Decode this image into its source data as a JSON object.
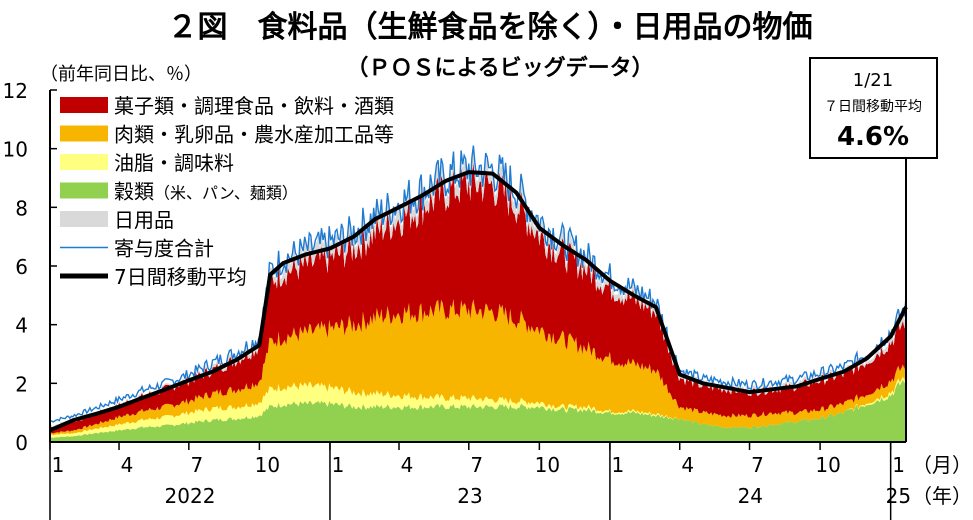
{
  "title": "２図　食料品（生鮮食品を除く）・日用品の物価",
  "subtitle": "（ＰＯＳによるビッグデータ）",
  "colors": {
    "confectionery": "#c00000",
    "meat": "#f8b500",
    "oils": "#ffff80",
    "grains": "#92d050",
    "daily": "#d9d9d9",
    "contribution_line": "#1f7ad1",
    "ma_line": "#000000"
  },
  "chart_data": {
    "type": "area",
    "ylabel": "（前年同日比、％）",
    "ylim": [
      0,
      12
    ],
    "yticks": [
      0,
      2,
      4,
      6,
      8,
      10,
      12
    ],
    "x_range": [
      "2022-01-01",
      "2025-01-21"
    ],
    "month_labels": [
      {
        "date": "2022-01",
        "label": "1"
      },
      {
        "date": "2022-04",
        "label": "4"
      },
      {
        "date": "2022-07",
        "label": "7"
      },
      {
        "date": "2022-10",
        "label": "10"
      },
      {
        "date": "2023-01",
        "label": "1"
      },
      {
        "date": "2023-04",
        "label": "4"
      },
      {
        "date": "2023-07",
        "label": "7"
      },
      {
        "date": "2023-10",
        "label": "10"
      },
      {
        "date": "2024-01",
        "label": "1"
      },
      {
        "date": "2024-04",
        "label": "4"
      },
      {
        "date": "2024-07",
        "label": "7"
      },
      {
        "date": "2024-10",
        "label": "10"
      },
      {
        "date": "2025-01",
        "label": "1"
      }
    ],
    "year_labels": [
      {
        "start": "2022-01",
        "end": "2023-01",
        "label": "2022"
      },
      {
        "start": "2023-01",
        "end": "2024-01",
        "label": "23"
      },
      {
        "start": "2024-01",
        "end": "2025-01",
        "label": "24"
      },
      {
        "start": "2025-01",
        "end": "2025-01-21",
        "label": "25"
      }
    ],
    "x_unit_month": "（月）",
    "x_unit_year": "（年）",
    "legend": [
      {
        "key": "confectionery",
        "label": "菓子類・調理食品・飲料・酒類",
        "kind": "area"
      },
      {
        "key": "meat",
        "label": "肉類・乳卵品・農水産加工品等",
        "kind": "area"
      },
      {
        "key": "oils",
        "label": "油脂・調味料",
        "kind": "area"
      },
      {
        "key": "grains",
        "label": "穀類",
        "sublabel": "（米、パン、麺類）",
        "kind": "area"
      },
      {
        "key": "daily",
        "label": "日用品",
        "kind": "area"
      },
      {
        "key": "contribution",
        "label": "寄与度合計",
        "kind": "thin-line"
      },
      {
        "key": "ma7",
        "label": "7日間移動平均",
        "kind": "thick-line"
      }
    ],
    "series_note": "monthly approximate values read from chart (percent, y/y)",
    "dates": [
      "2022-01-01",
      "2022-02-01",
      "2022-03-01",
      "2022-04-01",
      "2022-05-01",
      "2022-06-01",
      "2022-07-01",
      "2022-08-01",
      "2022-09-01",
      "2022-10-01",
      "2022-10-15",
      "2022-11-01",
      "2022-12-01",
      "2023-01-01",
      "2023-02-01",
      "2023-03-01",
      "2023-04-01",
      "2023-05-01",
      "2023-06-01",
      "2023-07-01",
      "2023-08-01",
      "2023-09-01",
      "2023-10-01",
      "2023-11-01",
      "2023-12-01",
      "2024-01-01",
      "2024-02-01",
      "2024-03-01",
      "2024-04-01",
      "2024-05-01",
      "2024-06-01",
      "2024-07-01",
      "2024-08-01",
      "2024-09-01",
      "2024-10-01",
      "2024-11-01",
      "2024-12-01",
      "2025-01-01",
      "2025-01-21"
    ],
    "series": [
      {
        "key": "grains",
        "name": "穀類",
        "values": [
          0.15,
          0.2,
          0.3,
          0.4,
          0.5,
          0.55,
          0.65,
          0.75,
          0.8,
          0.9,
          1.2,
          1.3,
          1.3,
          1.3,
          1.2,
          1.2,
          1.2,
          1.2,
          1.2,
          1.2,
          1.2,
          1.2,
          1.2,
          1.1,
          1.1,
          1.0,
          1.0,
          0.9,
          0.8,
          0.6,
          0.5,
          0.5,
          0.6,
          0.7,
          0.8,
          1.0,
          1.3,
          1.6,
          2.2
        ]
      },
      {
        "key": "oils",
        "name": "油脂・調味料",
        "values": [
          0.1,
          0.1,
          0.15,
          0.2,
          0.25,
          0.3,
          0.35,
          0.4,
          0.4,
          0.45,
          0.6,
          0.6,
          0.6,
          0.55,
          0.5,
          0.45,
          0.4,
          0.35,
          0.3,
          0.3,
          0.25,
          0.2,
          0.15,
          0.1,
          0.1,
          0.05,
          0.05,
          0.05,
          0.0,
          0.0,
          -0.05,
          -0.1,
          -0.1,
          -0.1,
          -0.05,
          0.0,
          0.05,
          0.1,
          0.1
        ]
      },
      {
        "key": "meat",
        "name": "肉類・乳卵品・農水産加工品等",
        "values": [
          0.05,
          0.1,
          0.15,
          0.25,
          0.3,
          0.35,
          0.4,
          0.5,
          0.6,
          0.7,
          1.6,
          1.7,
          1.8,
          2.0,
          2.3,
          2.6,
          2.8,
          2.9,
          3.0,
          3.0,
          3.0,
          2.8,
          2.5,
          2.3,
          2.0,
          1.8,
          1.6,
          1.5,
          0.4,
          0.4,
          0.4,
          0.4,
          0.4,
          0.3,
          0.3,
          0.3,
          0.3,
          0.4,
          0.4
        ]
      },
      {
        "key": "confectionery",
        "name": "菓子類・調理食品・飲料・酒類",
        "values": [
          0.2,
          0.3,
          0.35,
          0.4,
          0.5,
          0.6,
          0.7,
          0.8,
          1.0,
          1.2,
          2.1,
          2.2,
          2.3,
          2.4,
          2.6,
          2.9,
          3.2,
          3.6,
          4.0,
          4.3,
          4.3,
          3.9,
          3.2,
          2.9,
          2.7,
          2.4,
          2.2,
          2.0,
          1.0,
          0.9,
          0.9,
          0.8,
          0.8,
          0.9,
          1.0,
          1.0,
          1.1,
          1.3,
          1.5
        ]
      },
      {
        "key": "daily",
        "name": "日用品",
        "values": [
          0.05,
          0.05,
          0.05,
          0.05,
          0.05,
          0.05,
          0.05,
          0.1,
          0.1,
          0.15,
          0.2,
          0.3,
          0.4,
          0.4,
          0.4,
          0.4,
          0.4,
          0.4,
          0.4,
          0.4,
          0.4,
          0.4,
          0.35,
          0.3,
          0.3,
          0.25,
          0.2,
          0.2,
          0.1,
          0.1,
          0.1,
          0.1,
          0.1,
          0.1,
          0.1,
          0.1,
          0.1,
          0.2,
          0.3
        ]
      }
    ],
    "ma7": [
      0.4,
      0.75,
      0.95,
      1.2,
      1.5,
      1.8,
      2.1,
      2.4,
      2.8,
      3.3,
      5.7,
      6.1,
      6.4,
      6.6,
      7.0,
      7.6,
      8.0,
      8.4,
      8.9,
      9.2,
      9.15,
      8.5,
      7.3,
      6.7,
      6.2,
      5.5,
      5.0,
      4.6,
      2.3,
      2.0,
      1.85,
      1.7,
      1.8,
      1.9,
      2.15,
      2.4,
      2.85,
      3.6,
      4.6
    ]
  },
  "annotation": {
    "date": "1/21",
    "label": "７日間移動平均",
    "value": "4.6%"
  }
}
